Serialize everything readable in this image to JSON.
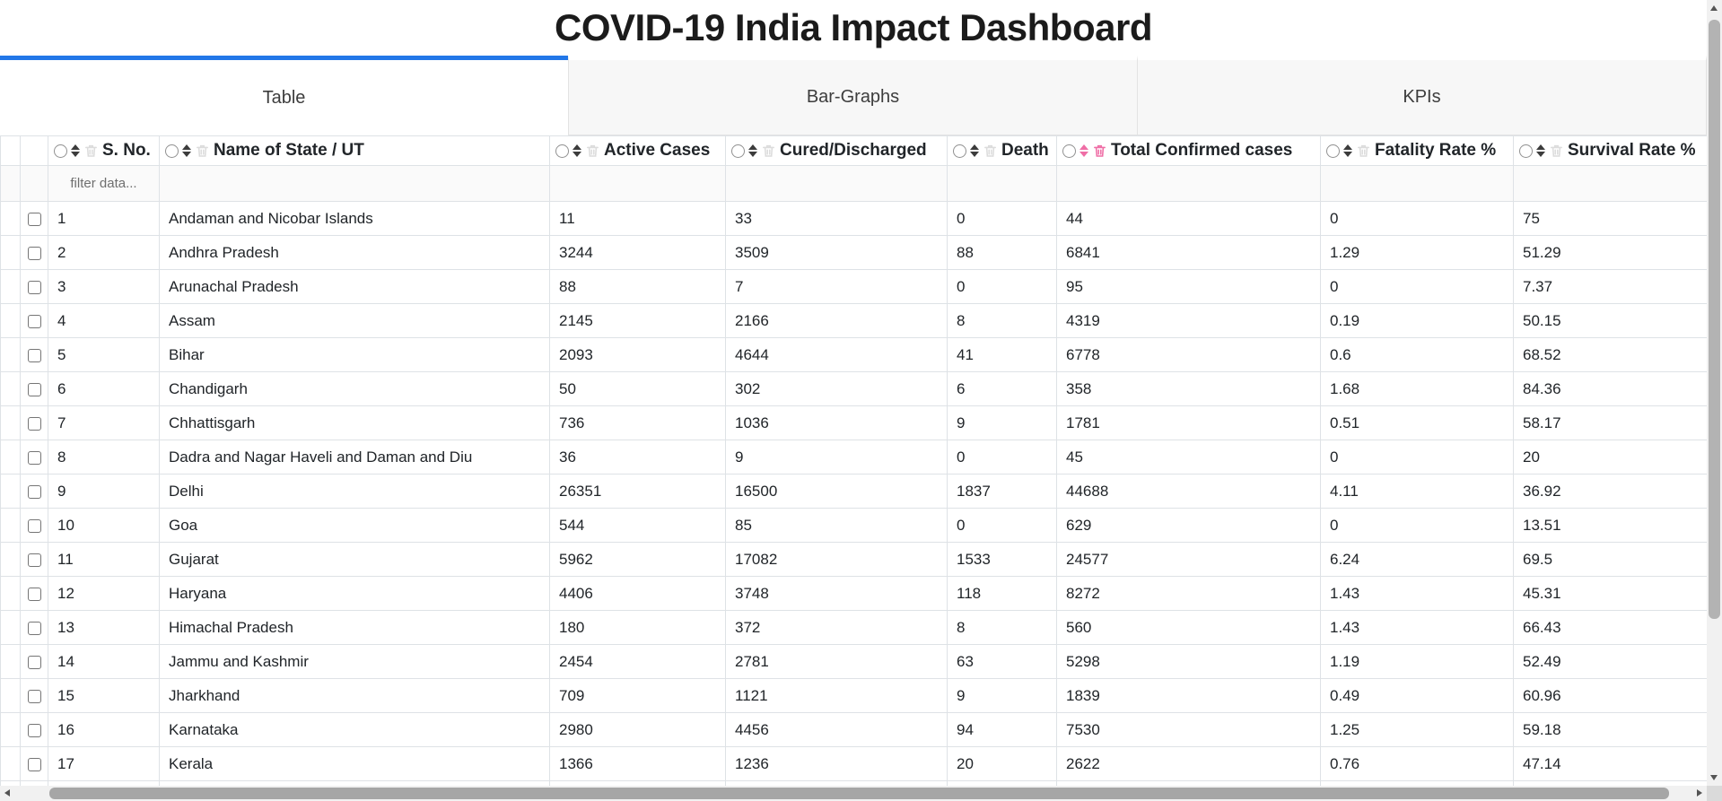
{
  "app": {
    "title": "COVID-19 India Impact Dashboard"
  },
  "colors": {
    "accent_blue": "#2277e8",
    "highlight_pink": "#ef6ea6"
  },
  "tabs": [
    {
      "label": "Table",
      "active": true
    },
    {
      "label": "Bar-Graphs",
      "active": false
    },
    {
      "label": "KPIs",
      "active": false
    }
  ],
  "icons": {
    "column_select": "radio-circle",
    "column_sort": "up-down-arrows",
    "column_delete": "trash-outline",
    "row_select": "checkbox",
    "scroll_arrows": "triangle-arrows"
  },
  "table": {
    "filter_placeholder": "filter data...",
    "columns": [
      {
        "key": "sno",
        "label": "S. No.",
        "highlighted": false
      },
      {
        "key": "state",
        "label": "Name of State / UT",
        "highlighted": false
      },
      {
        "key": "active",
        "label": "Active Cases",
        "highlighted": false
      },
      {
        "key": "cured",
        "label": "Cured/Discharged",
        "highlighted": false
      },
      {
        "key": "death",
        "label": "Death",
        "highlighted": false
      },
      {
        "key": "total",
        "label": "Total Confirmed cases",
        "highlighted": true
      },
      {
        "key": "fatality",
        "label": "Fatality Rate %",
        "highlighted": false
      },
      {
        "key": "survival",
        "label": "Survival Rate %",
        "highlighted": false
      }
    ],
    "rows": [
      [
        "1",
        "Andaman and Nicobar Islands",
        "11",
        "33",
        "0",
        "44",
        "0",
        "75"
      ],
      [
        "2",
        "Andhra Pradesh",
        "3244",
        "3509",
        "88",
        "6841",
        "1.29",
        "51.29"
      ],
      [
        "3",
        "Arunachal Pradesh",
        "88",
        "7",
        "0",
        "95",
        "0",
        "7.37"
      ],
      [
        "4",
        "Assam",
        "2145",
        "2166",
        "8",
        "4319",
        "0.19",
        "50.15"
      ],
      [
        "5",
        "Bihar",
        "2093",
        "4644",
        "41",
        "6778",
        "0.6",
        "68.52"
      ],
      [
        "6",
        "Chandigarh",
        "50",
        "302",
        "6",
        "358",
        "1.68",
        "84.36"
      ],
      [
        "7",
        "Chhattisgarh",
        "736",
        "1036",
        "9",
        "1781",
        "0.51",
        "58.17"
      ],
      [
        "8",
        "Dadra and Nagar Haveli and Daman and Diu",
        "36",
        "9",
        "0",
        "45",
        "0",
        "20"
      ],
      [
        "9",
        "Delhi",
        "26351",
        "16500",
        "1837",
        "44688",
        "4.11",
        "36.92"
      ],
      [
        "10",
        "Goa",
        "544",
        "85",
        "0",
        "629",
        "0",
        "13.51"
      ],
      [
        "11",
        "Gujarat",
        "5962",
        "17082",
        "1533",
        "24577",
        "6.24",
        "69.5"
      ],
      [
        "12",
        "Haryana",
        "4406",
        "3748",
        "118",
        "8272",
        "1.43",
        "45.31"
      ],
      [
        "13",
        "Himachal Pradesh",
        "180",
        "372",
        "8",
        "560",
        "1.43",
        "66.43"
      ],
      [
        "14",
        "Jammu and Kashmir",
        "2454",
        "2781",
        "63",
        "5298",
        "1.19",
        "52.49"
      ],
      [
        "15",
        "Jharkhand",
        "709",
        "1121",
        "9",
        "1839",
        "0.49",
        "60.96"
      ],
      [
        "16",
        "Karnataka",
        "2980",
        "4456",
        "94",
        "7530",
        "1.25",
        "59.18"
      ],
      [
        "17",
        "Kerala",
        "1366",
        "1236",
        "20",
        "2622",
        "0.76",
        "47.14"
      ]
    ]
  }
}
